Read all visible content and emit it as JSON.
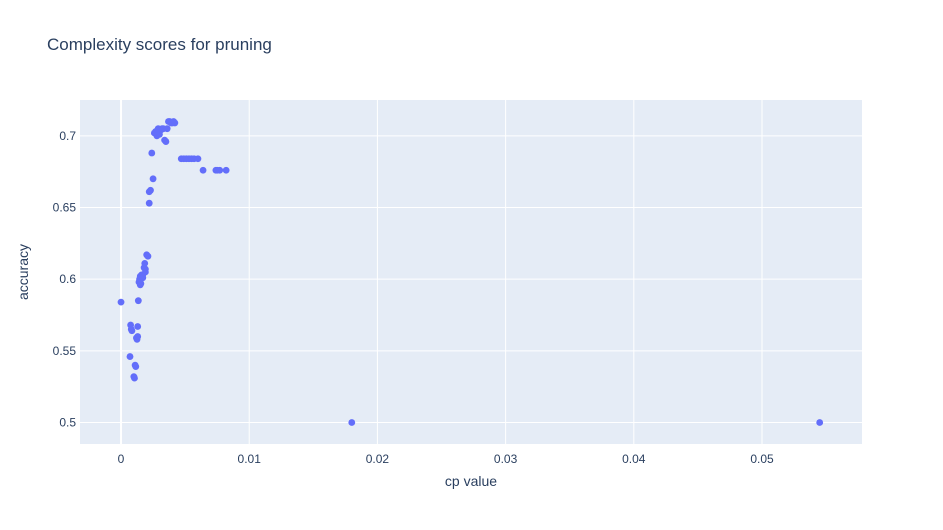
{
  "chart_data": {
    "type": "scatter",
    "title": "Complexity scores for pruning",
    "xlabel": "cp value",
    "ylabel": "accuracy",
    "xlim": [
      -0.0032,
      0.0578
    ],
    "ylim": [
      0.485,
      0.725
    ],
    "xticks": [
      0,
      0.01,
      0.02,
      0.03,
      0.04,
      0.05
    ],
    "xtick_labels": [
      "0",
      "0.01",
      "0.02",
      "0.03",
      "0.04",
      "0.05"
    ],
    "yticks": [
      0.5,
      0.55,
      0.6,
      0.65,
      0.7
    ],
    "ytick_labels": [
      "0.5",
      "0.55",
      "0.6",
      "0.65",
      "0.7"
    ],
    "grid": true,
    "legend": false,
    "colors": {
      "marker": "#636efa",
      "plot_bg": "#e5ecf6",
      "grid": "#ffffff",
      "text": "#2a3f5f"
    },
    "series": [
      {
        "x": [
          0.0,
          0.0007,
          0.00075,
          0.0008,
          0.00085,
          0.001,
          0.00105,
          0.0011,
          0.00115,
          0.0012,
          0.00125,
          0.0013,
          0.0013,
          0.00135,
          0.0014,
          0.00145,
          0.0015,
          0.0015,
          0.00155,
          0.0016,
          0.0017,
          0.0017,
          0.0018,
          0.00185,
          0.0019,
          0.0019,
          0.002,
          0.0021,
          0.0022,
          0.0022,
          0.0023,
          0.0024,
          0.0025,
          0.0026,
          0.0027,
          0.0028,
          0.0029,
          0.003,
          0.0031,
          0.0032,
          0.0033,
          0.0034,
          0.0035,
          0.0036,
          0.0037,
          0.0038,
          0.0039,
          0.004,
          0.0041,
          0.0042,
          0.0047,
          0.0049,
          0.0051,
          0.0053,
          0.0055,
          0.0057,
          0.006,
          0.0064,
          0.0074,
          0.0075,
          0.0077,
          0.0082,
          0.018,
          0.0545
        ],
        "y": [
          0.584,
          0.546,
          0.568,
          0.565,
          0.564,
          0.532,
          0.531,
          0.54,
          0.539,
          0.559,
          0.558,
          0.56,
          0.567,
          0.585,
          0.598,
          0.6,
          0.602,
          0.596,
          0.597,
          0.603,
          0.603,
          0.601,
          0.608,
          0.611,
          0.607,
          0.605,
          0.617,
          0.616,
          0.653,
          0.661,
          0.662,
          0.688,
          0.67,
          0.702,
          0.703,
          0.7,
          0.705,
          0.701,
          0.704,
          0.705,
          0.705,
          0.697,
          0.696,
          0.705,
          0.71,
          0.71,
          0.709,
          0.709,
          0.71,
          0.709,
          0.684,
          0.684,
          0.684,
          0.684,
          0.684,
          0.684,
          0.684,
          0.676,
          0.676,
          0.676,
          0.676,
          0.676,
          0.5,
          0.5
        ]
      }
    ]
  }
}
